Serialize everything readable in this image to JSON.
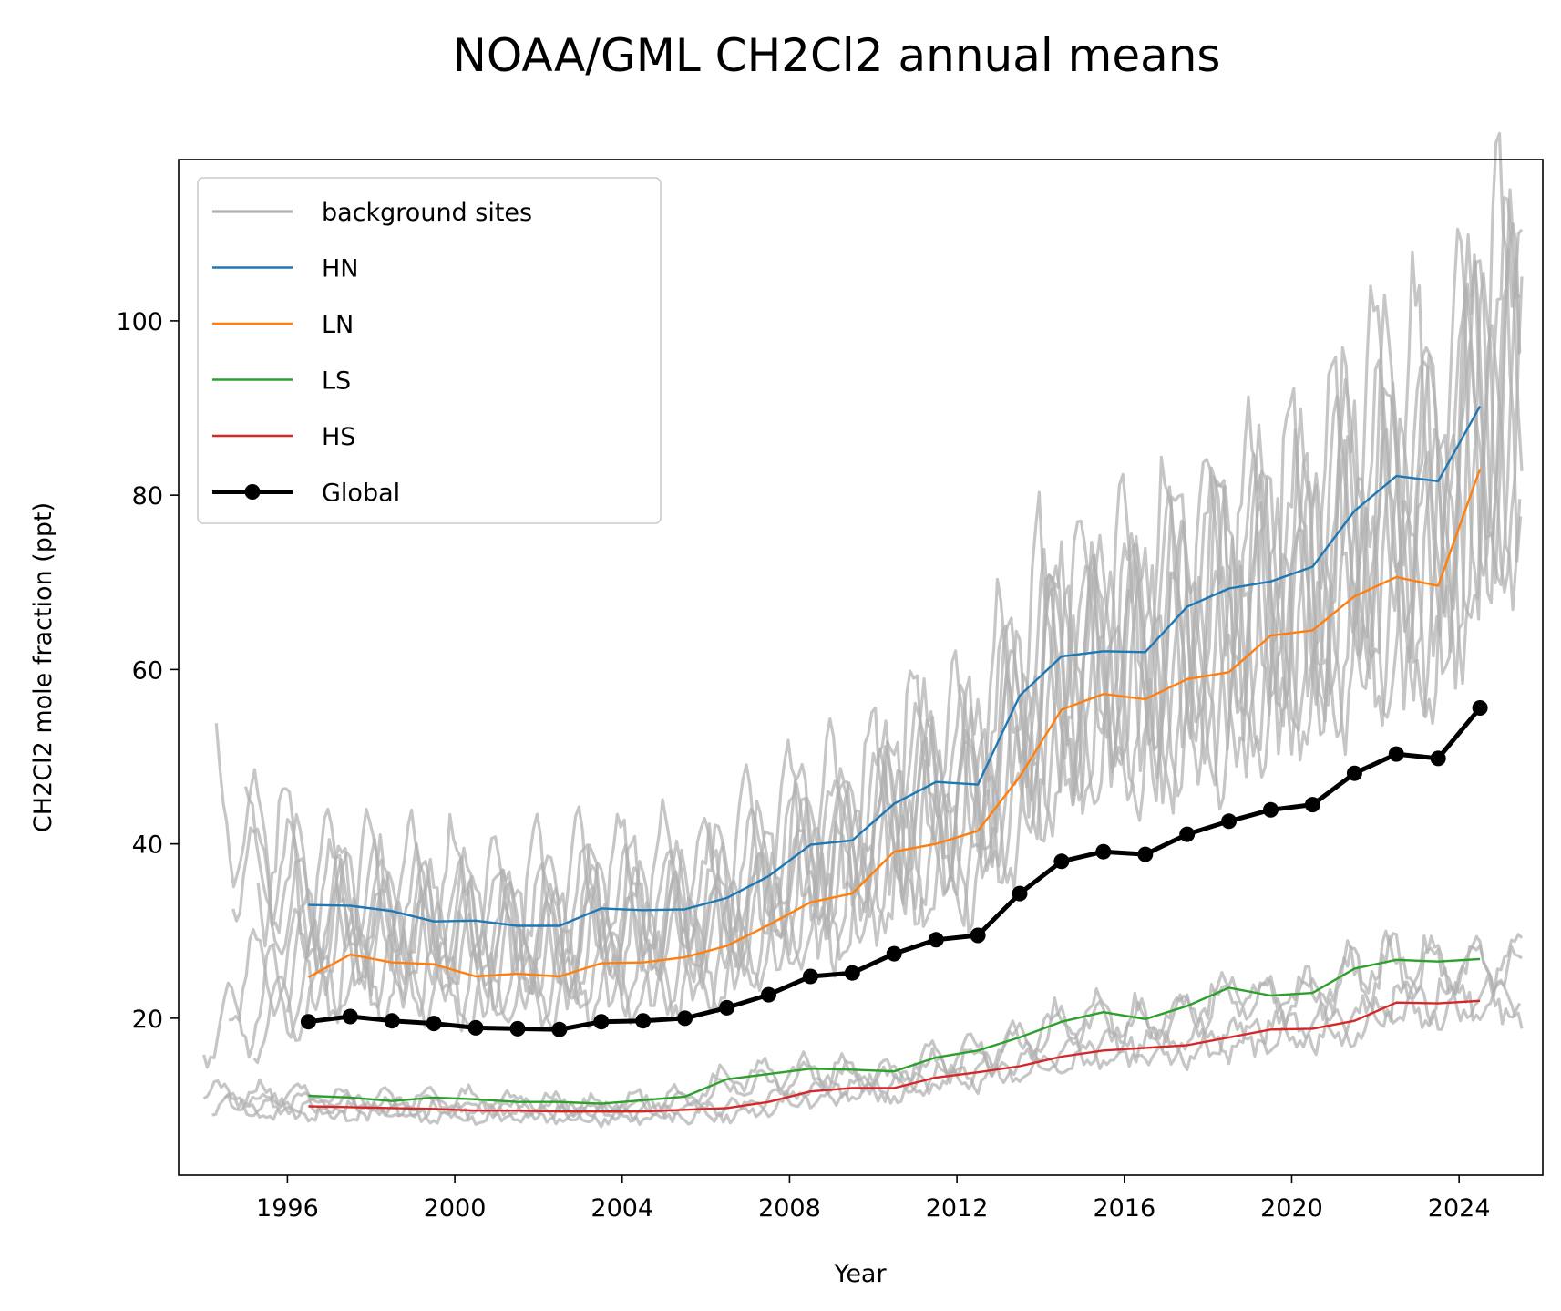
{
  "chart_data": {
    "type": "line",
    "title": "NOAA/GML CH2Cl2 annual means",
    "xlabel": "Year",
    "ylabel": "CH2Cl2 mole fraction (ppt)",
    "xlim": [
      1993.4,
      2026.0
    ],
    "ylim": [
      2.0,
      118.5
    ],
    "xticks": [
      1996,
      2000,
      2004,
      2008,
      2012,
      2016,
      2020,
      2024
    ],
    "yticks": [
      20,
      40,
      60,
      80,
      100
    ],
    "grid": false,
    "legend_position": "upper-left",
    "legend": [
      "background sites",
      "HN",
      "LN",
      "LS",
      "HS",
      "Global"
    ],
    "x": [
      1996.5,
      1997.5,
      1998.5,
      1999.5,
      2000.5,
      2001.5,
      2002.5,
      2003.5,
      2004.5,
      2005.5,
      2006.5,
      2007.5,
      2008.5,
      2009.5,
      2010.5,
      2011.5,
      2012.5,
      2013.5,
      2014.5,
      2015.5,
      2016.5,
      2017.5,
      2018.5,
      2019.5,
      2020.5,
      2021.5,
      2022.5,
      2023.5,
      2024.5
    ],
    "series": [
      {
        "name": "HN",
        "color": "#1f77b4",
        "values": [
          33.0,
          32.9,
          32.3,
          31.1,
          31.2,
          30.6,
          30.6,
          32.6,
          32.4,
          32.5,
          33.8,
          36.3,
          39.9,
          40.4,
          44.6,
          47.1,
          46.8,
          57.0,
          61.5,
          62.1,
          62.0,
          67.2,
          69.3,
          70.1,
          71.8,
          78.2,
          82.2,
          81.6,
          90.2
        ]
      },
      {
        "name": "LN",
        "color": "#ff7f0e",
        "values": [
          24.7,
          27.3,
          26.4,
          26.2,
          24.8,
          25.1,
          24.8,
          26.3,
          26.4,
          27.0,
          28.3,
          30.7,
          33.3,
          34.3,
          39.1,
          40.0,
          41.5,
          47.7,
          55.4,
          57.2,
          56.6,
          58.9,
          59.7,
          63.9,
          64.5,
          68.4,
          70.6,
          69.6,
          83.0
        ]
      },
      {
        "name": "LS",
        "color": "#2ca02c",
        "values": [
          11.1,
          10.9,
          10.5,
          10.9,
          10.7,
          10.4,
          10.4,
          10.2,
          10.6,
          11.0,
          13.0,
          13.6,
          14.2,
          14.1,
          13.9,
          15.5,
          16.3,
          17.8,
          19.6,
          20.7,
          19.9,
          21.4,
          23.5,
          22.6,
          22.9,
          25.7,
          26.7,
          26.5,
          26.8
        ]
      },
      {
        "name": "HS",
        "color": "#d62728",
        "values": [
          9.9,
          9.8,
          9.7,
          9.6,
          9.4,
          9.4,
          9.3,
          9.3,
          9.3,
          9.5,
          9.7,
          10.4,
          11.6,
          12.0,
          12.0,
          13.2,
          13.8,
          14.5,
          15.6,
          16.3,
          16.6,
          16.9,
          17.8,
          18.7,
          18.8,
          19.7,
          21.8,
          21.7,
          22.0
        ]
      },
      {
        "name": "Global",
        "color": "#000000",
        "values": [
          19.6,
          20.2,
          19.7,
          19.4,
          18.9,
          18.8,
          18.7,
          19.6,
          19.7,
          20.0,
          21.2,
          22.7,
          24.8,
          25.2,
          27.4,
          29.0,
          29.5,
          34.3,
          38.0,
          39.1,
          38.8,
          41.1,
          42.6,
          43.9,
          44.5,
          48.1,
          50.3,
          49.8,
          55.6
        ]
      }
    ]
  }
}
